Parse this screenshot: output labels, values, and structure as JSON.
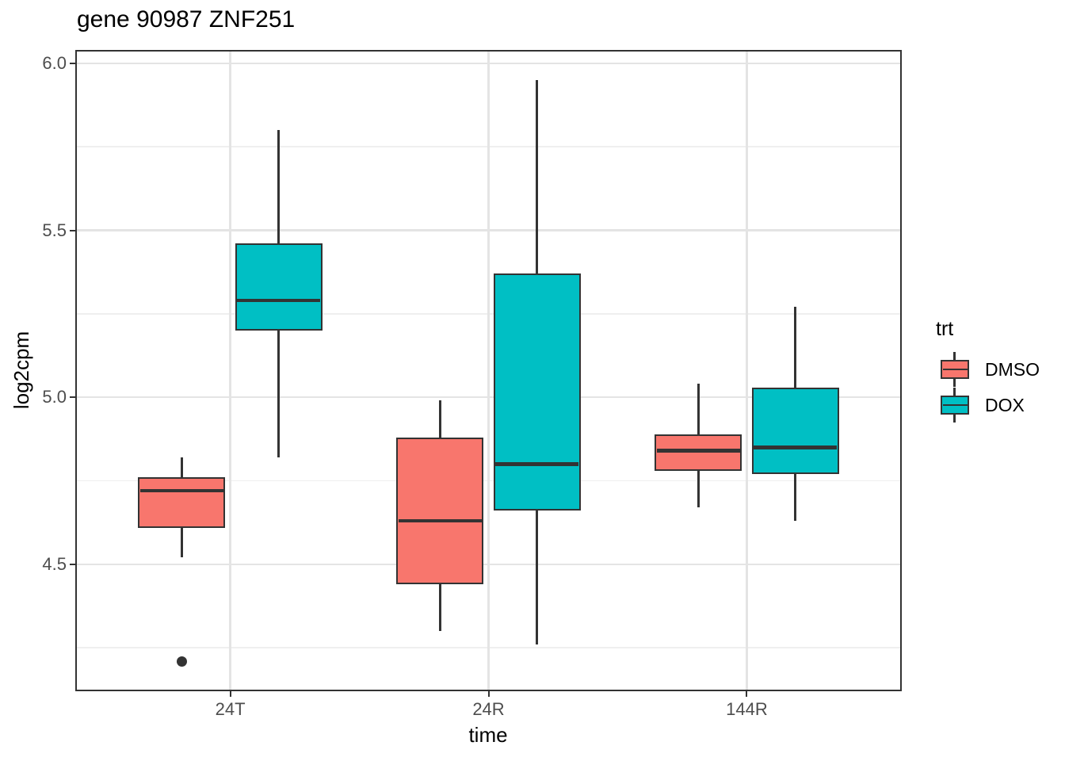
{
  "page": {
    "background": "#ffffff"
  },
  "chart_data": {
    "type": "boxplot",
    "title": "gene 90987 ZNF251",
    "xlabel": "time",
    "ylabel": "log2cpm",
    "categories": [
      "24T",
      "24R",
      "144R"
    ],
    "ylim": [
      4.12,
      6.04
    ],
    "yticks": [
      {
        "value": 4.5,
        "label": "4.5"
      },
      {
        "value": 5.0,
        "label": "5.0"
      },
      {
        "value": 5.5,
        "label": "5.5"
      },
      {
        "value": 6.0,
        "label": "6.0"
      }
    ],
    "yticks_minor": [
      4.25,
      4.75,
      5.25,
      5.75
    ],
    "grid": true,
    "legend": {
      "title": "trt",
      "position": "right",
      "entries": [
        {
          "label": "DMSO",
          "color": "#F8766D"
        },
        {
          "label": "DOX",
          "color": "#00BFC4"
        }
      ]
    },
    "series": [
      {
        "name": "DMSO",
        "color": "#F8766D",
        "boxes": [
          {
            "category": "24T",
            "whisker_low": 4.52,
            "q1": 4.61,
            "median": 4.72,
            "q3": 4.76,
            "whisker_high": 4.82,
            "outliers": [
              4.21
            ]
          },
          {
            "category": "24R",
            "whisker_low": 4.3,
            "q1": 4.44,
            "median": 4.63,
            "q3": 4.88,
            "whisker_high": 4.99,
            "outliers": []
          },
          {
            "category": "144R",
            "whisker_low": 4.67,
            "q1": 4.78,
            "median": 4.84,
            "q3": 4.89,
            "whisker_high": 5.04,
            "outliers": []
          }
        ]
      },
      {
        "name": "DOX",
        "color": "#00BFC4",
        "boxes": [
          {
            "category": "24T",
            "whisker_low": 4.82,
            "q1": 5.2,
            "median": 5.29,
            "q3": 5.46,
            "whisker_high": 5.8,
            "outliers": []
          },
          {
            "category": "24R",
            "whisker_low": 4.26,
            "q1": 4.66,
            "median": 4.8,
            "q3": 5.37,
            "whisker_high": 5.95,
            "outliers": []
          },
          {
            "category": "144R",
            "whisker_low": 4.63,
            "q1": 4.77,
            "median": 4.85,
            "q3": 5.03,
            "whisker_high": 5.27,
            "outliers": []
          }
        ]
      }
    ],
    "colors": {
      "box_outline": "#333333",
      "panel_border": "#333333",
      "grid_major": "#e4e4e4",
      "grid_minor": "#efefef",
      "tick_label": "#4d4d4d",
      "outlier": "#333333"
    }
  }
}
